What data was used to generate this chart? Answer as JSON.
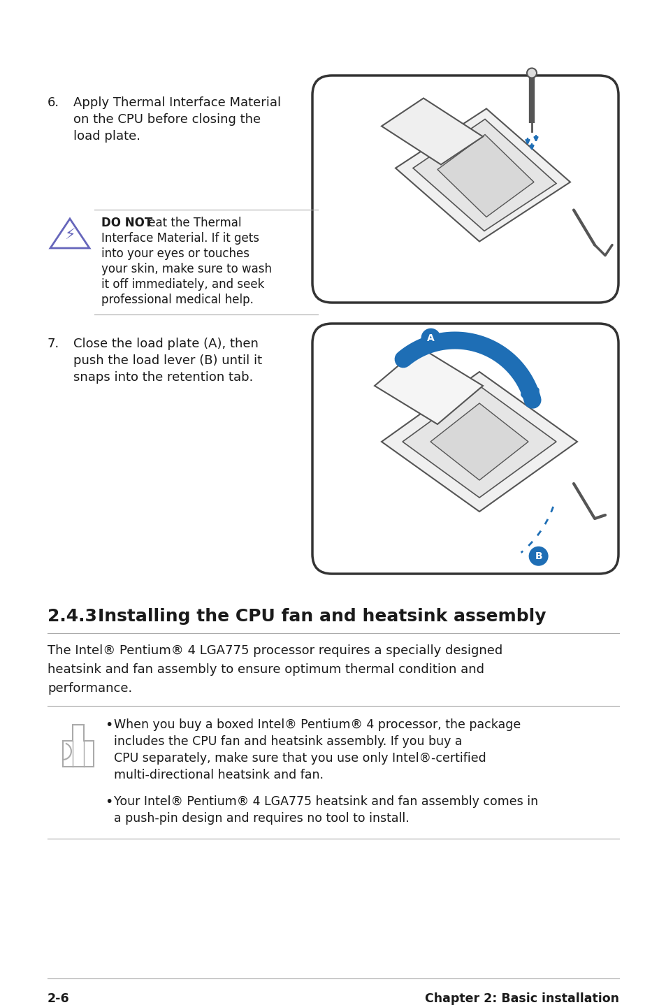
{
  "bg_color": "#ffffff",
  "text_color": "#1a1a1a",
  "step6_number": "6.",
  "step6_text_lines": [
    "Apply Thermal Interface Material",
    "on the CPU before closing the",
    "load plate."
  ],
  "warning_bold": "DO NOT",
  "warning_rest_line1": " eat the Thermal",
  "warning_lines": [
    "Interface Material. If it gets",
    "into your eyes or touches",
    "your skin, make sure to wash",
    "it off immediately, and seek",
    "professional medical help."
  ],
  "step7_number": "7.",
  "step7_text_lines": [
    "Close the load plate (A), then",
    "push the load lever (B) until it",
    "snaps into the retention tab."
  ],
  "section_title_num": "2.4.3",
  "section_title_text": "Installing the CPU fan and heatsink assembly",
  "section_body_lines": [
    "The Intel® Pentium® 4 LGA775 processor requires a specially designed",
    "heatsink and fan assembly to ensure optimum thermal condition and",
    "performance."
  ],
  "bullet1_lines": [
    "When you buy a boxed Intel® Pentium® 4 processor, the package",
    "includes the CPU fan and heatsink assembly. If you buy a",
    "CPU separately, make sure that you use only Intel®-certified",
    "multi-directional heatsink and fan."
  ],
  "bullet2_lines": [
    "Your Intel® Pentium® 4 LGA775 heatsink and fan assembly comes in",
    "a push-pin design and requires no tool to install."
  ],
  "footer_left": "2-6",
  "footer_right": "Chapter 2: Basic installation",
  "accent_color": "#1e6eb5",
  "line_color": "#aaaaaa",
  "dark_color": "#333333",
  "img_line_color": "#555555"
}
